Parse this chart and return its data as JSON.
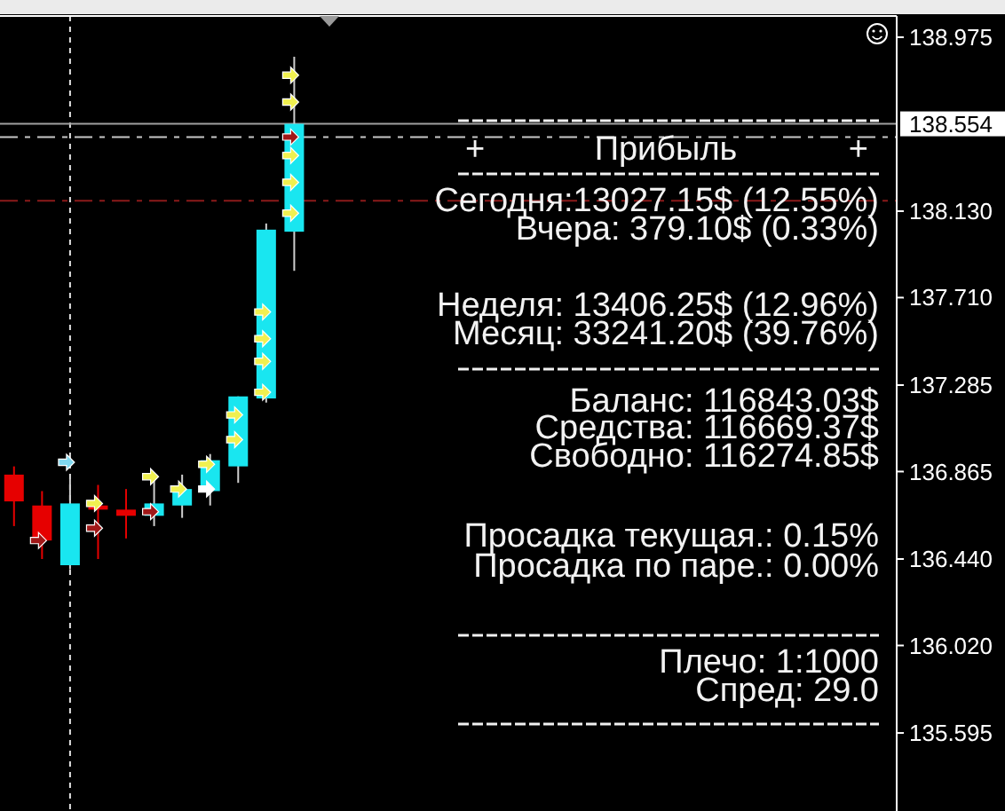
{
  "chart_data": {
    "type": "candlestick",
    "categories": [
      null,
      null,
      null,
      null,
      null,
      null,
      null,
      null,
      null,
      null,
      null,
      null,
      null,
      null,
      null,
      null,
      null,
      null,
      null,
      null,
      null,
      null,
      null,
      null,
      null,
      null,
      null,
      null,
      null,
      null,
      null,
      null
    ],
    "ohlc": [
      [
        136.85,
        136.89,
        136.6,
        136.72
      ],
      [
        136.7,
        136.77,
        136.44,
        136.53
      ],
      [
        136.41,
        136.83,
        136.39,
        136.71
      ],
      [
        136.7,
        136.8,
        136.44,
        136.68
      ],
      [
        136.68,
        136.78,
        136.54,
        136.65
      ],
      [
        136.65,
        136.85,
        136.6,
        136.71
      ],
      [
        136.7,
        136.85,
        136.64,
        136.78
      ],
      [
        136.77,
        136.95,
        136.7,
        136.92
      ],
      [
        136.89,
        137.23,
        136.81,
        137.23
      ],
      [
        137.22,
        138.07,
        137.2,
        138.04
      ],
      [
        138.03,
        138.88,
        137.84,
        138.554
      ],
      null,
      null,
      null,
      null,
      null,
      null,
      null,
      null,
      null,
      null,
      null,
      null,
      null,
      null,
      null,
      null,
      null,
      null,
      null,
      null,
      null
    ],
    "colors": [
      "#e60000",
      "#e60000",
      "#19e6f0",
      "#e60000",
      "#e60000",
      "#19e6f0",
      "#19e6f0",
      "#19e6f0",
      "#19e6f0",
      "#19e6f0",
      "#19e6f0",
      null,
      null,
      null,
      null,
      null,
      null,
      null,
      null,
      null,
      null,
      null,
      null,
      null,
      null,
      null,
      null,
      null,
      null,
      null,
      null,
      null
    ],
    "series": [
      {
        "type": "scatter",
        "color": "#f0f050",
        "values": [
          null,
          null,
          null,
          136.71,
          null,
          136.84,
          136.78,
          136.9,
          137.14,
          137.64,
          138.79,
          null,
          null,
          null,
          null,
          null,
          null,
          null,
          null,
          null,
          null,
          null,
          null,
          null,
          null,
          null,
          null,
          null,
          null,
          null,
          null,
          null
        ]
      },
      {
        "type": "scatter",
        "color": "#f0f050",
        "values": [
          null,
          null,
          null,
          null,
          null,
          null,
          null,
          null,
          137.02,
          137.51,
          138.66,
          null,
          null,
          null,
          null,
          null,
          null,
          null,
          null,
          null,
          null,
          null,
          null,
          null,
          null,
          null,
          null,
          null,
          null,
          null,
          null,
          null
        ]
      },
      {
        "type": "scatter",
        "color": "#f0f050",
        "values": [
          null,
          null,
          null,
          null,
          null,
          null,
          null,
          null,
          null,
          137.4,
          138.4,
          null,
          null,
          null,
          null,
          null,
          null,
          null,
          null,
          null,
          null,
          null,
          null,
          null,
          null,
          null,
          null,
          null,
          null,
          null,
          null,
          null
        ]
      },
      {
        "type": "scatter",
        "color": "#f0f050",
        "values": [
          null,
          null,
          null,
          null,
          null,
          null,
          null,
          null,
          null,
          137.25,
          138.27,
          null,
          null,
          null,
          null,
          null,
          null,
          null,
          null,
          null,
          null,
          null,
          null,
          null,
          null,
          null,
          null,
          null,
          null,
          null,
          null,
          null
        ]
      },
      {
        "type": "scatter",
        "color": "#f0f050",
        "values": [
          null,
          null,
          null,
          null,
          null,
          null,
          null,
          null,
          null,
          null,
          138.12,
          null,
          null,
          null,
          null,
          null,
          null,
          null,
          null,
          null,
          null,
          null,
          null,
          null,
          null,
          null,
          null,
          null,
          null,
          null,
          null,
          null
        ]
      },
      {
        "type": "scatter",
        "color": "#a01818",
        "values": [
          null,
          136.53,
          null,
          136.59,
          null,
          136.67,
          null,
          null,
          null,
          null,
          138.49,
          null,
          null,
          null,
          null,
          null,
          null,
          null,
          null,
          null,
          null,
          null,
          null,
          null,
          null,
          null,
          null,
          null,
          null,
          null,
          null,
          null
        ]
      },
      {
        "type": "scatter",
        "color": "#ffffff",
        "values": [
          null,
          null,
          null,
          null,
          null,
          null,
          null,
          136.78,
          null,
          null,
          null,
          null,
          null,
          null,
          null,
          null,
          null,
          null,
          null,
          null,
          null,
          null,
          null,
          null,
          null,
          null,
          null,
          null,
          null,
          null,
          null,
          null
        ]
      },
      {
        "type": "scatter",
        "color": "#80d8f0",
        "values": [
          null,
          null,
          136.91,
          null,
          null,
          null,
          null,
          null,
          null,
          null,
          null,
          null,
          null,
          null,
          null,
          null,
          null,
          null,
          null,
          null,
          null,
          null,
          null,
          null,
          null,
          null,
          null,
          null,
          null,
          null,
          null,
          null
        ]
      }
    ],
    "marker": "triangle",
    "ylim": [
      135.216,
      139.078
    ],
    "yticks": [
      138.975,
      {
        "value": 138.13,
        "label": "138.130"
      },
      {
        "value": 137.71,
        "label": "137.710"
      },
      137.285,
      136.865,
      {
        "value": 136.44,
        "label": "136.440"
      },
      {
        "value": 136.02,
        "label": "136.020"
      },
      135.595
    ],
    "tick_labels": "y",
    "ref_lines": [
      {
        "axis": "y",
        "value": 138.554,
        "label": "138.554",
        "color": "#a0a0a0",
        "line_style": "solid"
      },
      {
        "axis": "y",
        "value": 138.49,
        "label": null,
        "color": "#c8c8c8",
        "line_style": "dashed"
      },
      {
        "axis": "y",
        "value": 138.18,
        "label": null,
        "color": "#8b1a1a",
        "line_style": "dashed"
      }
    ],
    "annotations": [
      "+ Прибыль +",
      "Сегодня:13027.15$ (12.55%)",
      "Вчера: 379.10$ (0.33%)",
      "Неделя: 13406.25$ (12.96%)",
      "Месяц: 33241.20$ (39.76%)",
      "Баланс: 116843.03$",
      "Средства: 116669.37$",
      "Свободно: 116274.85$",
      "Просадка текущая.: 0.15%",
      "Просадка по паре.: 0.00%",
      "Плечо: 1:1000",
      "Спред: 29.0"
    ]
  }
}
